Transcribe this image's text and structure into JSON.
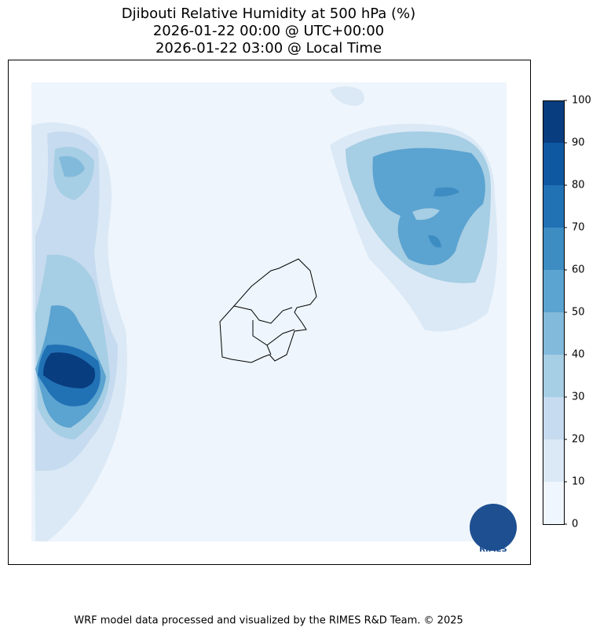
{
  "title": [
    "Djibouti Relative Humidity at 500 hPa (%)",
    "2026-01-22 00:00 @ UTC+00:00",
    "2026-01-22 03:00 @ Local Time"
  ],
  "colorbar": {
    "ticks": [
      0,
      10,
      20,
      30,
      40,
      50,
      60,
      70,
      80,
      90,
      100
    ],
    "colors": [
      "#f0f6fd",
      "#dbe9f6",
      "#c6dbef",
      "#a6cee4",
      "#82badb",
      "#5ba3d0",
      "#3d8dc3",
      "#2171b5",
      "#0e58a2",
      "#083d7f"
    ]
  },
  "logo_text": "RIMES",
  "footer": "WRF model data processed and visualized by the RIMES R&D Team. © 2025"
}
